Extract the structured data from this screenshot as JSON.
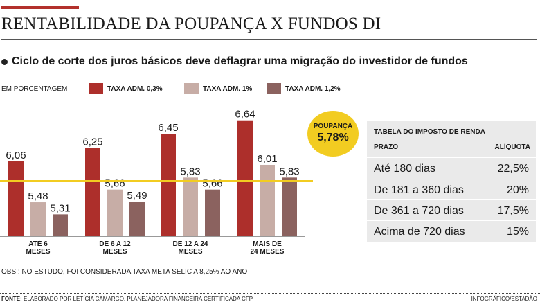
{
  "header": {
    "title": "RENTABILIDADE DA POUPANÇA X FUNDOS DI",
    "subtitle": "Ciclo de corte dos juros básicos deve deflagrar uma migração do investidor de fundos"
  },
  "unit_label": "EM PORCENTAGEM",
  "colors": {
    "adm03": "#ad2f2b",
    "adm1": "#c7ada6",
    "adm12": "#8b625f",
    "poupanca_line": "#f2cc21",
    "accent": "#b3312c"
  },
  "chart_data": {
    "type": "bar",
    "categories": [
      [
        "ATÉ 6",
        "MESES"
      ],
      [
        "DE 6 A 12",
        "MESES"
      ],
      [
        "DE 12 A 24",
        "MESES"
      ],
      [
        "MAIS DE",
        "24 MESES"
      ]
    ],
    "series": [
      {
        "name": "TAXA ADM. 0,3%",
        "values": [
          6.06,
          6.25,
          6.45,
          6.64
        ],
        "labels": [
          "6,06",
          "6,25",
          "6,45",
          "6,64"
        ],
        "color": "#ad2f2b"
      },
      {
        "name": "TAXA ADM. 1%",
        "values": [
          5.48,
          5.66,
          5.83,
          6.01
        ],
        "labels": [
          "5,48",
          "5,66",
          "5,83",
          "6,01"
        ],
        "color": "#c7ada6"
      },
      {
        "name": "TAXA ADM. 1,2%",
        "values": [
          5.31,
          5.49,
          5.66,
          5.83
        ],
        "labels": [
          "5,31",
          "5,49",
          "5,66",
          "5,83"
        ],
        "color": "#8b625f"
      }
    ],
    "reference_line": {
      "label": "POUPANÇA",
      "value": 5.78,
      "value_label": "5,78%"
    },
    "grid": false,
    "legend": "top"
  },
  "tax_table": {
    "title": "TABELA DO IMPOSTO DE RENDA",
    "headers": [
      "PRAZO",
      "ALÍQUOTA"
    ],
    "rows": [
      [
        "Até 180 dias",
        "22,5%"
      ],
      [
        "De 181 a 360 dias",
        "20%"
      ],
      [
        "De 361 a 720 dias",
        "17,5%"
      ],
      [
        "Acima de 720 dias",
        "15%"
      ]
    ]
  },
  "obs": "OBS.: NO ESTUDO, FOI CONSIDERADA TAXA META SELIC A 8,25% AO ANO",
  "footer": {
    "source_label": "FONTE:",
    "source": " ELABORADO POR LETÍCIA CAMARGO, PLANEJADORA FINANCEIRA CERTIFICADA CFP",
    "credit": "INFOGRÁFICO/ESTADÃO"
  }
}
